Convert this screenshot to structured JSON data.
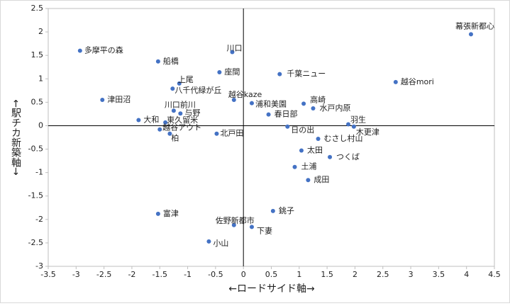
{
  "chart_data": {
    "type": "scatter",
    "color": "#4472c4",
    "x_label": "←ロードサイド軸→",
    "y_label": "←駅チカ新築軸→",
    "xlim": [
      -3.5,
      4.5
    ],
    "ylim": [
      -3,
      2.5
    ],
    "xticks": [
      -3.5,
      -3,
      -2.5,
      -2,
      -1.5,
      -1,
      -0.5,
      0,
      0.5,
      1,
      1.5,
      2,
      2.5,
      3,
      3.5,
      4,
      4.5
    ],
    "yticks": [
      -3,
      -2.5,
      -2,
      -1.5,
      -1,
      -0.5,
      0,
      0.5,
      1,
      1.5,
      2,
      2.5
    ],
    "point_labels": [
      "幕張新都心",
      "多摩平の森",
      "川口",
      "船橋",
      "座間",
      "千葉ニュー",
      "越谷mori",
      "上尾",
      "八千代緑が丘",
      "津田沼",
      "越谷kaze",
      "浦和美園",
      "高崎",
      "水戸内原",
      "川口前川",
      "与野",
      "春日部",
      "大和",
      "東久留米",
      "羽生",
      "木更津",
      "日の出",
      "越谷アウト",
      "柏",
      "北戸田",
      "むさし村山",
      "太田",
      "つくば",
      "土浦",
      "成田",
      "銚子",
      "富津",
      "佐野新都市",
      "下妻",
      "小山"
    ],
    "x": [
      4.08,
      -2.93,
      -0.2,
      -1.53,
      -0.43,
      0.65,
      2.73,
      -1.15,
      -1.27,
      -2.53,
      -0.17,
      0.15,
      1.08,
      1.25,
      -1.25,
      -1.13,
      0.45,
      -1.88,
      -1.4,
      1.88,
      1.98,
      0.79,
      -1.5,
      -1.32,
      -0.48,
      1.34,
      1.04,
      1.55,
      0.92,
      1.16,
      0.53,
      -1.53,
      -0.17,
      0.15,
      -0.62
    ],
    "values": [
      1.95,
      1.6,
      1.57,
      1.37,
      1.14,
      1.1,
      0.93,
      0.9,
      0.79,
      0.55,
      0.55,
      0.48,
      0.47,
      0.37,
      0.32,
      0.26,
      0.24,
      0.12,
      0.07,
      0.03,
      -0.02,
      -0.02,
      -0.08,
      -0.17,
      -0.17,
      -0.28,
      -0.53,
      -0.67,
      -0.88,
      -1.16,
      -1.82,
      -1.88,
      -2.12,
      -2.16,
      -2.47
    ]
  }
}
